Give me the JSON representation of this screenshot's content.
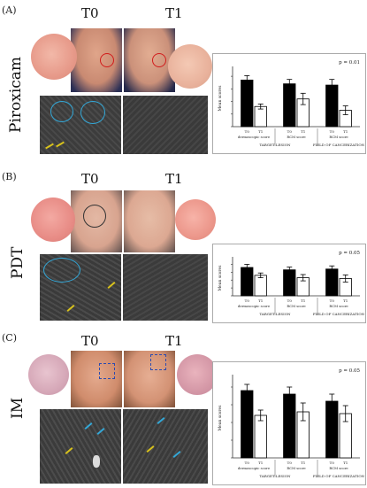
{
  "panels": [
    {
      "letter": "(A)",
      "t0": "T0",
      "t1": "T1",
      "treatment": "Piroxicam",
      "chart_data": {
        "type": "bar",
        "p_value": "p = 0.01",
        "ylabel": "Mean scores",
        "groups": [
          {
            "t0": "T0",
            "t1": "T1",
            "sublabel": "dermoscopic score"
          },
          {
            "t0": "T0",
            "t1": "T1",
            "sublabel": "RCM score"
          },
          {
            "t0": "T0",
            "t1": "T1",
            "sublabel": "RCM score"
          }
        ],
        "section_labels": [
          "TARGET LESION",
          "FIELD OF CANCERIZATION"
        ],
        "series": [
          {
            "values": [
              3.7,
              3.4,
              3.3
            ],
            "errors": [
              0.35,
              0.35,
              0.45
            ]
          },
          {
            "values": [
              1.6,
              2.2,
              1.3
            ],
            "errors": [
              0.2,
              0.45,
              0.35
            ]
          }
        ],
        "ylim": [
          0,
          4.5
        ]
      }
    },
    {
      "letter": "(B)",
      "t0": "T0",
      "t1": "T1",
      "treatment": "PDT",
      "chart_data": {
        "type": "bar",
        "p_value": "p = 0.05",
        "ylabel": "Mean scores",
        "groups": [
          {
            "t0": "T0",
            "t1": "T1",
            "sublabel": "dermoscopic score"
          },
          {
            "t0": "T0",
            "t1": "T1",
            "sublabel": "RCM score"
          },
          {
            "t0": "T0",
            "t1": "T1",
            "sublabel": "RCM score"
          }
        ],
        "section_labels": [
          "TARGET LESION",
          "FIELD OF CANCERIZATION"
        ],
        "series": [
          {
            "values": [
              3.6,
              3.3,
              3.4
            ],
            "errors": [
              0.4,
              0.35,
              0.4
            ]
          },
          {
            "values": [
              2.6,
              2.3,
              2.2
            ],
            "errors": [
              0.3,
              0.4,
              0.45
            ]
          }
        ],
        "ylim": [
          0,
          4.5
        ]
      }
    },
    {
      "letter": "(C)",
      "t0": "T0",
      "t1": "T1",
      "treatment": "IM",
      "chart_data": {
        "type": "bar",
        "p_value": "p = 0.05",
        "ylabel": "Mean scores",
        "groups": [
          {
            "t0": "T0",
            "t1": "T1",
            "sublabel": "dermoscopic score"
          },
          {
            "t0": "T0",
            "t1": "T1",
            "sublabel": "RCM score"
          },
          {
            "t0": "T0",
            "t1": "T1",
            "sublabel": "RCM score"
          }
        ],
        "section_labels": [
          "TARGET LESION",
          "FIELD OF CANCERIZATION"
        ],
        "series": [
          {
            "values": [
              3.8,
              3.6,
              3.2
            ],
            "errors": [
              0.35,
              0.4,
              0.4
            ]
          },
          {
            "values": [
              2.4,
              2.6,
              2.5
            ],
            "errors": [
              0.3,
              0.5,
              0.45
            ]
          }
        ],
        "ylim": [
          0,
          4.5
        ]
      }
    }
  ]
}
